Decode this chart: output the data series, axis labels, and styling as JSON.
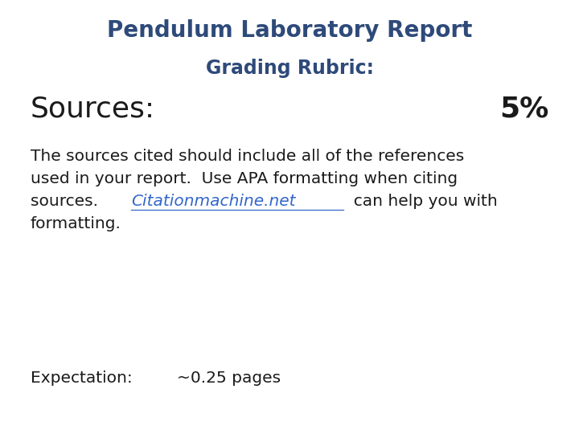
{
  "title": "Pendulum Laboratory Report",
  "subtitle": "Grading Rubric:",
  "section_label": "Sources:",
  "section_percent": "5%",
  "line1": "The sources cited should include all of the references",
  "line2": "used in your report.  Use APA formatting when citing",
  "line3_before": "sources.  ",
  "link_text": "Citationmachine.net",
  "line3_after": "  can help you with",
  "line4": "formatting.",
  "expectation_label": "Expectation:",
  "expectation_value": "~0.25 pages",
  "title_color": "#2E4A7A",
  "subtitle_color": "#2E4A7A",
  "section_color": "#1a1a1a",
  "body_color": "#1a1a1a",
  "link_color": "#3366CC",
  "background_color": "#ffffff",
  "title_fontsize": 20,
  "subtitle_fontsize": 17,
  "section_fontsize": 26,
  "percent_fontsize": 26,
  "body_fontsize": 14.5,
  "expectation_fontsize": 14.5
}
